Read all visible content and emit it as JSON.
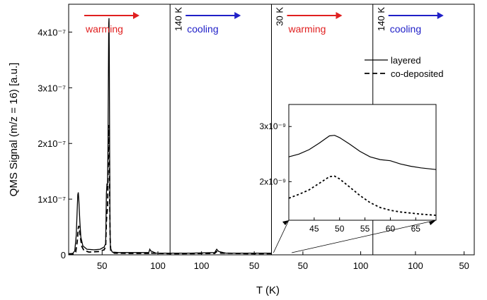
{
  "chart_data": {
    "type": "line",
    "xlabel": "T (K)",
    "ylabel": "QMS Signal (m/z = 16) [a.u.]",
    "ylim": [
      0,
      4.5e-07
    ],
    "y_ticks": [
      {
        "value": 0,
        "label": "0"
      },
      {
        "value": 1e-07,
        "label": "1x10⁻⁷"
      },
      {
        "value": 2e-07,
        "label": "2x10⁻⁷"
      },
      {
        "value": 3e-07,
        "label": "3x10⁻⁷"
      },
      {
        "value": 4e-07,
        "label": "4x10⁻⁷"
      }
    ],
    "segments": [
      {
        "direction": "warming",
        "arrow_color": "#e02020",
        "label_color": "#e02020",
        "x_ticks": [
          "50",
          "100"
        ]
      },
      {
        "direction": "cooling",
        "arrow_color": "#2020c8",
        "label_color": "#2020c8",
        "x_ticks": [
          "100",
          "50"
        ]
      },
      {
        "direction": "warming",
        "arrow_color": "#e02020",
        "label_color": "#e02020",
        "x_ticks": [
          "50",
          "100"
        ]
      },
      {
        "direction": "cooling",
        "arrow_color": "#2020c8",
        "label_color": "#2020c8",
        "x_ticks": [
          "100",
          "50"
        ]
      }
    ],
    "markers": [
      "140 K",
      "30 K",
      "140 K"
    ],
    "legend": {
      "placement": "top-right",
      "entries": [
        {
          "label": "layered",
          "style": "solid"
        },
        {
          "label": "co-deposited",
          "style": "dashed"
        }
      ]
    },
    "series": [
      {
        "name": "layered",
        "style": "solid",
        "points": [
          [
            0.0,
            2e-09
          ],
          [
            0.04,
            2.5e-09
          ],
          [
            0.06,
            7e-09
          ],
          [
            0.075,
            3.5e-08
          ],
          [
            0.085,
            8.5e-08
          ],
          [
            0.09,
            1.08e-07
          ],
          [
            0.095,
            1.12e-07
          ],
          [
            0.1,
            1e-07
          ],
          [
            0.11,
            6e-08
          ],
          [
            0.12,
            3.2e-08
          ],
          [
            0.14,
            1.6e-08
          ],
          [
            0.18,
            1e-08
          ],
          [
            0.25,
            9e-09
          ],
          [
            0.31,
            1e-08
          ],
          [
            0.35,
            1.4e-08
          ],
          [
            0.365,
            2e-08
          ],
          [
            0.372,
            1.1e-07
          ],
          [
            0.378,
            1.28e-07
          ],
          [
            0.383,
            1.25e-07
          ],
          [
            0.388,
            2e-07
          ],
          [
            0.392,
            3.3e-07
          ],
          [
            0.395,
            4.15e-07
          ],
          [
            0.398,
            4.25e-07
          ],
          [
            0.401,
            3.6e-07
          ],
          [
            0.404,
            1.9e-07
          ],
          [
            0.408,
            5e-08
          ],
          [
            0.412,
            1.2e-08
          ],
          [
            0.43,
            5e-09
          ],
          [
            0.5,
            4e-09
          ],
          [
            0.6,
            4e-09
          ],
          [
            0.7,
            4e-09
          ],
          [
            0.79,
            4e-09
          ],
          [
            0.8,
            1e-08
          ],
          [
            0.81,
            7e-09
          ],
          [
            0.86,
            3e-09
          ],
          [
            1.0,
            3e-09
          ],
          [
            1.2,
            3e-09
          ],
          [
            1.44,
            4e-09
          ],
          [
            1.46,
            1e-08
          ],
          [
            1.48,
            6e-09
          ],
          [
            1.55,
            3e-09
          ],
          [
            1.8,
            3e-09
          ],
          [
            2.0,
            3e-09
          ]
        ]
      },
      {
        "name": "co-deposited",
        "style": "dashed",
        "points": [
          [
            0.0,
            1e-09
          ],
          [
            0.05,
            1.5e-09
          ],
          [
            0.07,
            5e-09
          ],
          [
            0.085,
            2.5e-08
          ],
          [
            0.095,
            4.8e-08
          ],
          [
            0.1,
            5.2e-08
          ],
          [
            0.105,
            4.8e-08
          ],
          [
            0.115,
            3.2e-08
          ],
          [
            0.13,
            1.5e-08
          ],
          [
            0.15,
            8e-09
          ],
          [
            0.2,
            5e-09
          ],
          [
            0.3,
            6e-09
          ],
          [
            0.35,
            9e-09
          ],
          [
            0.365,
            1.5e-08
          ],
          [
            0.372,
            6e-08
          ],
          [
            0.378,
            7.5e-08
          ],
          [
            0.384,
            8.5e-08
          ],
          [
            0.389,
            1.5e-07
          ],
          [
            0.393,
            2e-07
          ],
          [
            0.396,
            2.33e-07
          ],
          [
            0.399,
            2.3e-07
          ],
          [
            0.402,
            1.8e-07
          ],
          [
            0.405,
            1e-07
          ],
          [
            0.409,
            3e-08
          ],
          [
            0.415,
            8e-09
          ],
          [
            0.45,
            3e-09
          ],
          [
            0.6,
            2.5e-09
          ],
          [
            0.79,
            2.5e-09
          ],
          [
            0.8,
            5e-09
          ],
          [
            0.82,
            3e-09
          ],
          [
            1.0,
            2e-09
          ],
          [
            1.44,
            2.5e-09
          ],
          [
            1.46,
            6e-09
          ],
          [
            1.5,
            3e-09
          ],
          [
            1.8,
            2e-09
          ],
          [
            2.0,
            2e-09
          ]
        ]
      }
    ],
    "inset": {
      "x_ticks": [
        "45",
        "50",
        "55",
        "60",
        "65"
      ],
      "xlim": [
        40,
        69
      ],
      "ylim": [
        1.3e-09,
        3.4e-09
      ],
      "y_ticks": [
        {
          "value": 2e-09,
          "label": "2x10⁻⁹"
        },
        {
          "value": 3e-09,
          "label": "3x10⁻⁹"
        }
      ],
      "series": [
        {
          "name": "layered",
          "style": "solid",
          "points": [
            [
              40,
              2.45e-09
            ],
            [
              42,
              2.5e-09
            ],
            [
              44,
              2.58e-09
            ],
            [
              46,
              2.7e-09
            ],
            [
              48,
              2.83e-09
            ],
            [
              49,
              2.84e-09
            ],
            [
              50,
              2.8e-09
            ],
            [
              52,
              2.68e-09
            ],
            [
              54,
              2.55e-09
            ],
            [
              56,
              2.45e-09
            ],
            [
              58,
              2.4e-09
            ],
            [
              60,
              2.38e-09
            ],
            [
              62,
              2.32e-09
            ],
            [
              64,
              2.28e-09
            ],
            [
              66,
              2.25e-09
            ],
            [
              69,
              2.22e-09
            ]
          ]
        },
        {
          "name": "co-deposited",
          "style": "dashed",
          "points": [
            [
              40,
              1.7e-09
            ],
            [
              42,
              1.77e-09
            ],
            [
              44,
              1.85e-09
            ],
            [
              46,
              1.97e-09
            ],
            [
              48,
              2.09e-09
            ],
            [
              49,
              2.1e-09
            ],
            [
              50,
              2.05e-09
            ],
            [
              52,
              1.9e-09
            ],
            [
              54,
              1.75e-09
            ],
            [
              56,
              1.62e-09
            ],
            [
              58,
              1.53e-09
            ],
            [
              60,
              1.48e-09
            ],
            [
              62,
              1.45e-09
            ],
            [
              64,
              1.43e-09
            ],
            [
              66,
              1.41e-09
            ],
            [
              69,
              1.39e-09
            ]
          ]
        }
      ]
    }
  }
}
